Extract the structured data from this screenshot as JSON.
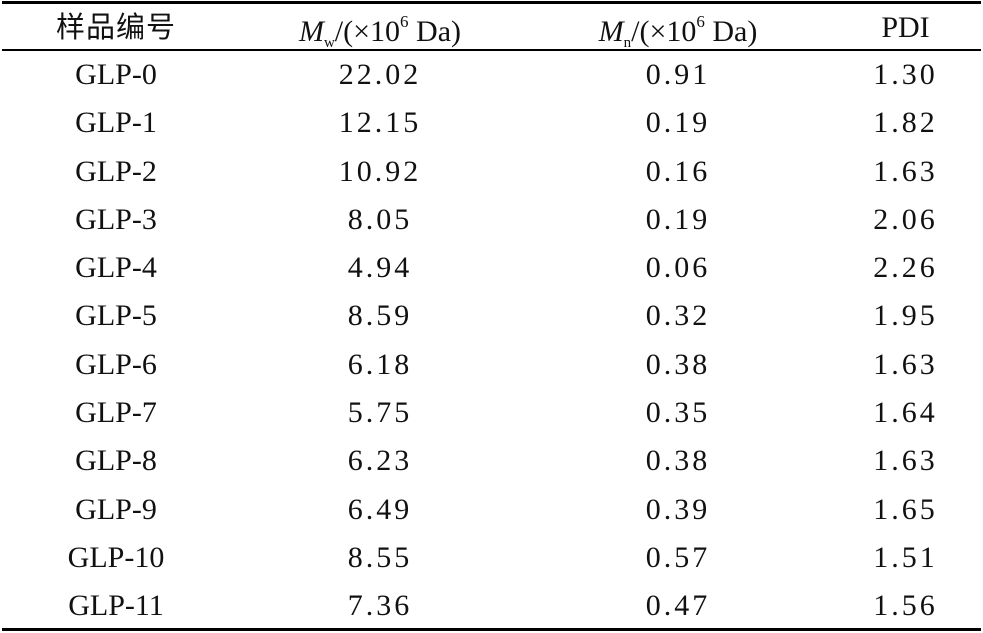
{
  "table": {
    "headers": {
      "sample_id": "样品编号",
      "mw": {
        "symbol": "M",
        "subscript": "w",
        "unit_prefix": "/(×10",
        "exponent": "6",
        "unit_suffix": " Da)"
      },
      "mn": {
        "symbol": "M",
        "subscript": "n",
        "unit_prefix": "/(×10",
        "exponent": "6",
        "unit_suffix": " Da)"
      },
      "pdi": "PDI"
    },
    "rows": [
      {
        "sample": "GLP-0",
        "mw": "22.02",
        "mn": "0.91",
        "pdi": "1.30"
      },
      {
        "sample": "GLP-1",
        "mw": "12.15",
        "mn": "0.19",
        "pdi": "1.82"
      },
      {
        "sample": "GLP-2",
        "mw": "10.92",
        "mn": "0.16",
        "pdi": "1.63"
      },
      {
        "sample": "GLP-3",
        "mw": "8.05",
        "mn": "0.19",
        "pdi": "2.06"
      },
      {
        "sample": "GLP-4",
        "mw": "4.94",
        "mn": "0.06",
        "pdi": "2.26"
      },
      {
        "sample": "GLP-5",
        "mw": "8.59",
        "mn": "0.32",
        "pdi": "1.95"
      },
      {
        "sample": "GLP-6",
        "mw": "6.18",
        "mn": "0.38",
        "pdi": "1.63"
      },
      {
        "sample": "GLP-7",
        "mw": "5.75",
        "mn": "0.35",
        "pdi": "1.64"
      },
      {
        "sample": "GLP-8",
        "mw": "6.23",
        "mn": "0.38",
        "pdi": "1.63"
      },
      {
        "sample": "GLP-9",
        "mw": "6.49",
        "mn": "0.39",
        "pdi": "1.65"
      },
      {
        "sample": "GLP-10",
        "mw": "8.55",
        "mn": "0.57",
        "pdi": "1.51"
      },
      {
        "sample": "GLP-11",
        "mw": "7.36",
        "mn": "0.47",
        "pdi": "1.56"
      }
    ]
  }
}
